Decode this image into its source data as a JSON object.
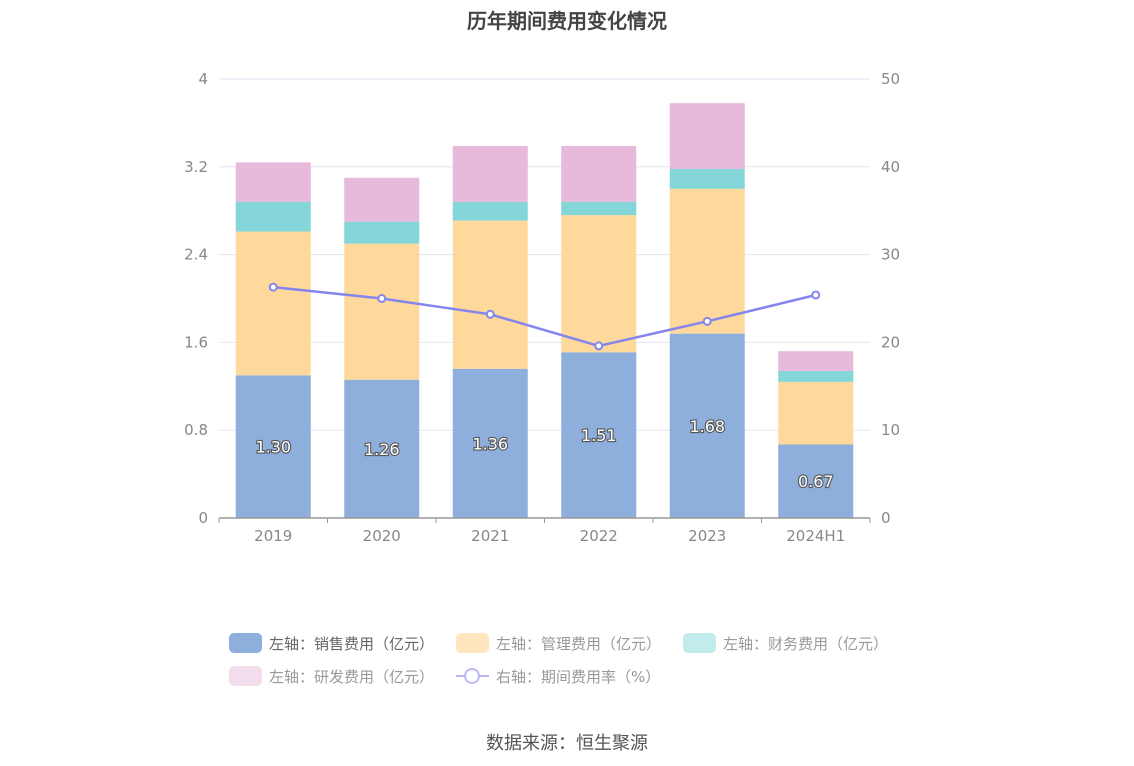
{
  "title": "历年期间费用变化情况",
  "source": "数据来源：恒生聚源",
  "colors": {
    "sales": "#8eaedb",
    "admin": "#fed99b",
    "finance": "#84d6d8",
    "rd": "#e7b9da",
    "rate": "#8585ee"
  },
  "legend": [
    {
      "label": "左轴：销售费用（亿元）",
      "color": "#8eaedb",
      "muted": false
    },
    {
      "label": "左轴：管理费用（亿元）",
      "color": "#ffe6bf",
      "muted": true
    },
    {
      "label": "左轴：财务费用（亿元）",
      "color": "#c2ebec",
      "muted": true
    },
    {
      "label": "左轴：研发费用（亿元）",
      "color": "#f3dcec",
      "muted": true
    },
    {
      "label": "右轴：期间费用率（%）",
      "color": "#b8b8f4",
      "muted": true,
      "line": true
    }
  ],
  "chart_data": {
    "type": "bar",
    "stacked": true,
    "categories": [
      "2019",
      "2020",
      "2021",
      "2022",
      "2023",
      "2024H1"
    ],
    "series": [
      {
        "name": "左轴：销售费用（亿元）",
        "axis": "left",
        "values": [
          1.3,
          1.26,
          1.36,
          1.51,
          1.68,
          0.67
        ]
      },
      {
        "name": "左轴：管理费用（亿元）",
        "axis": "left",
        "values": [
          1.31,
          1.24,
          1.35,
          1.25,
          1.32,
          0.57
        ]
      },
      {
        "name": "左轴：财务费用（亿元）",
        "axis": "left",
        "values": [
          0.27,
          0.2,
          0.17,
          0.12,
          0.18,
          0.1
        ]
      },
      {
        "name": "左轴：研发费用（亿元）",
        "axis": "left",
        "values": [
          0.36,
          0.4,
          0.51,
          0.51,
          0.6,
          0.18
        ]
      },
      {
        "name": "右轴：期间费用率（%）",
        "axis": "right",
        "type": "line",
        "values": [
          26.3,
          25.0,
          23.2,
          19.6,
          22.4,
          25.4
        ]
      }
    ],
    "data_labels": [
      "1.30",
      "1.26",
      "1.36",
      "1.51",
      "1.68",
      "0.67"
    ],
    "left_axis": {
      "ylim": [
        0,
        4
      ],
      "ticks": [
        "0",
        "0.8",
        "1.6",
        "2.4",
        "3.2",
        "4"
      ]
    },
    "right_axis": {
      "ylim": [
        0,
        50
      ],
      "ticks": [
        "0",
        "10",
        "20",
        "30",
        "40",
        "50"
      ]
    },
    "grid": true,
    "legend_position": "bottom"
  }
}
